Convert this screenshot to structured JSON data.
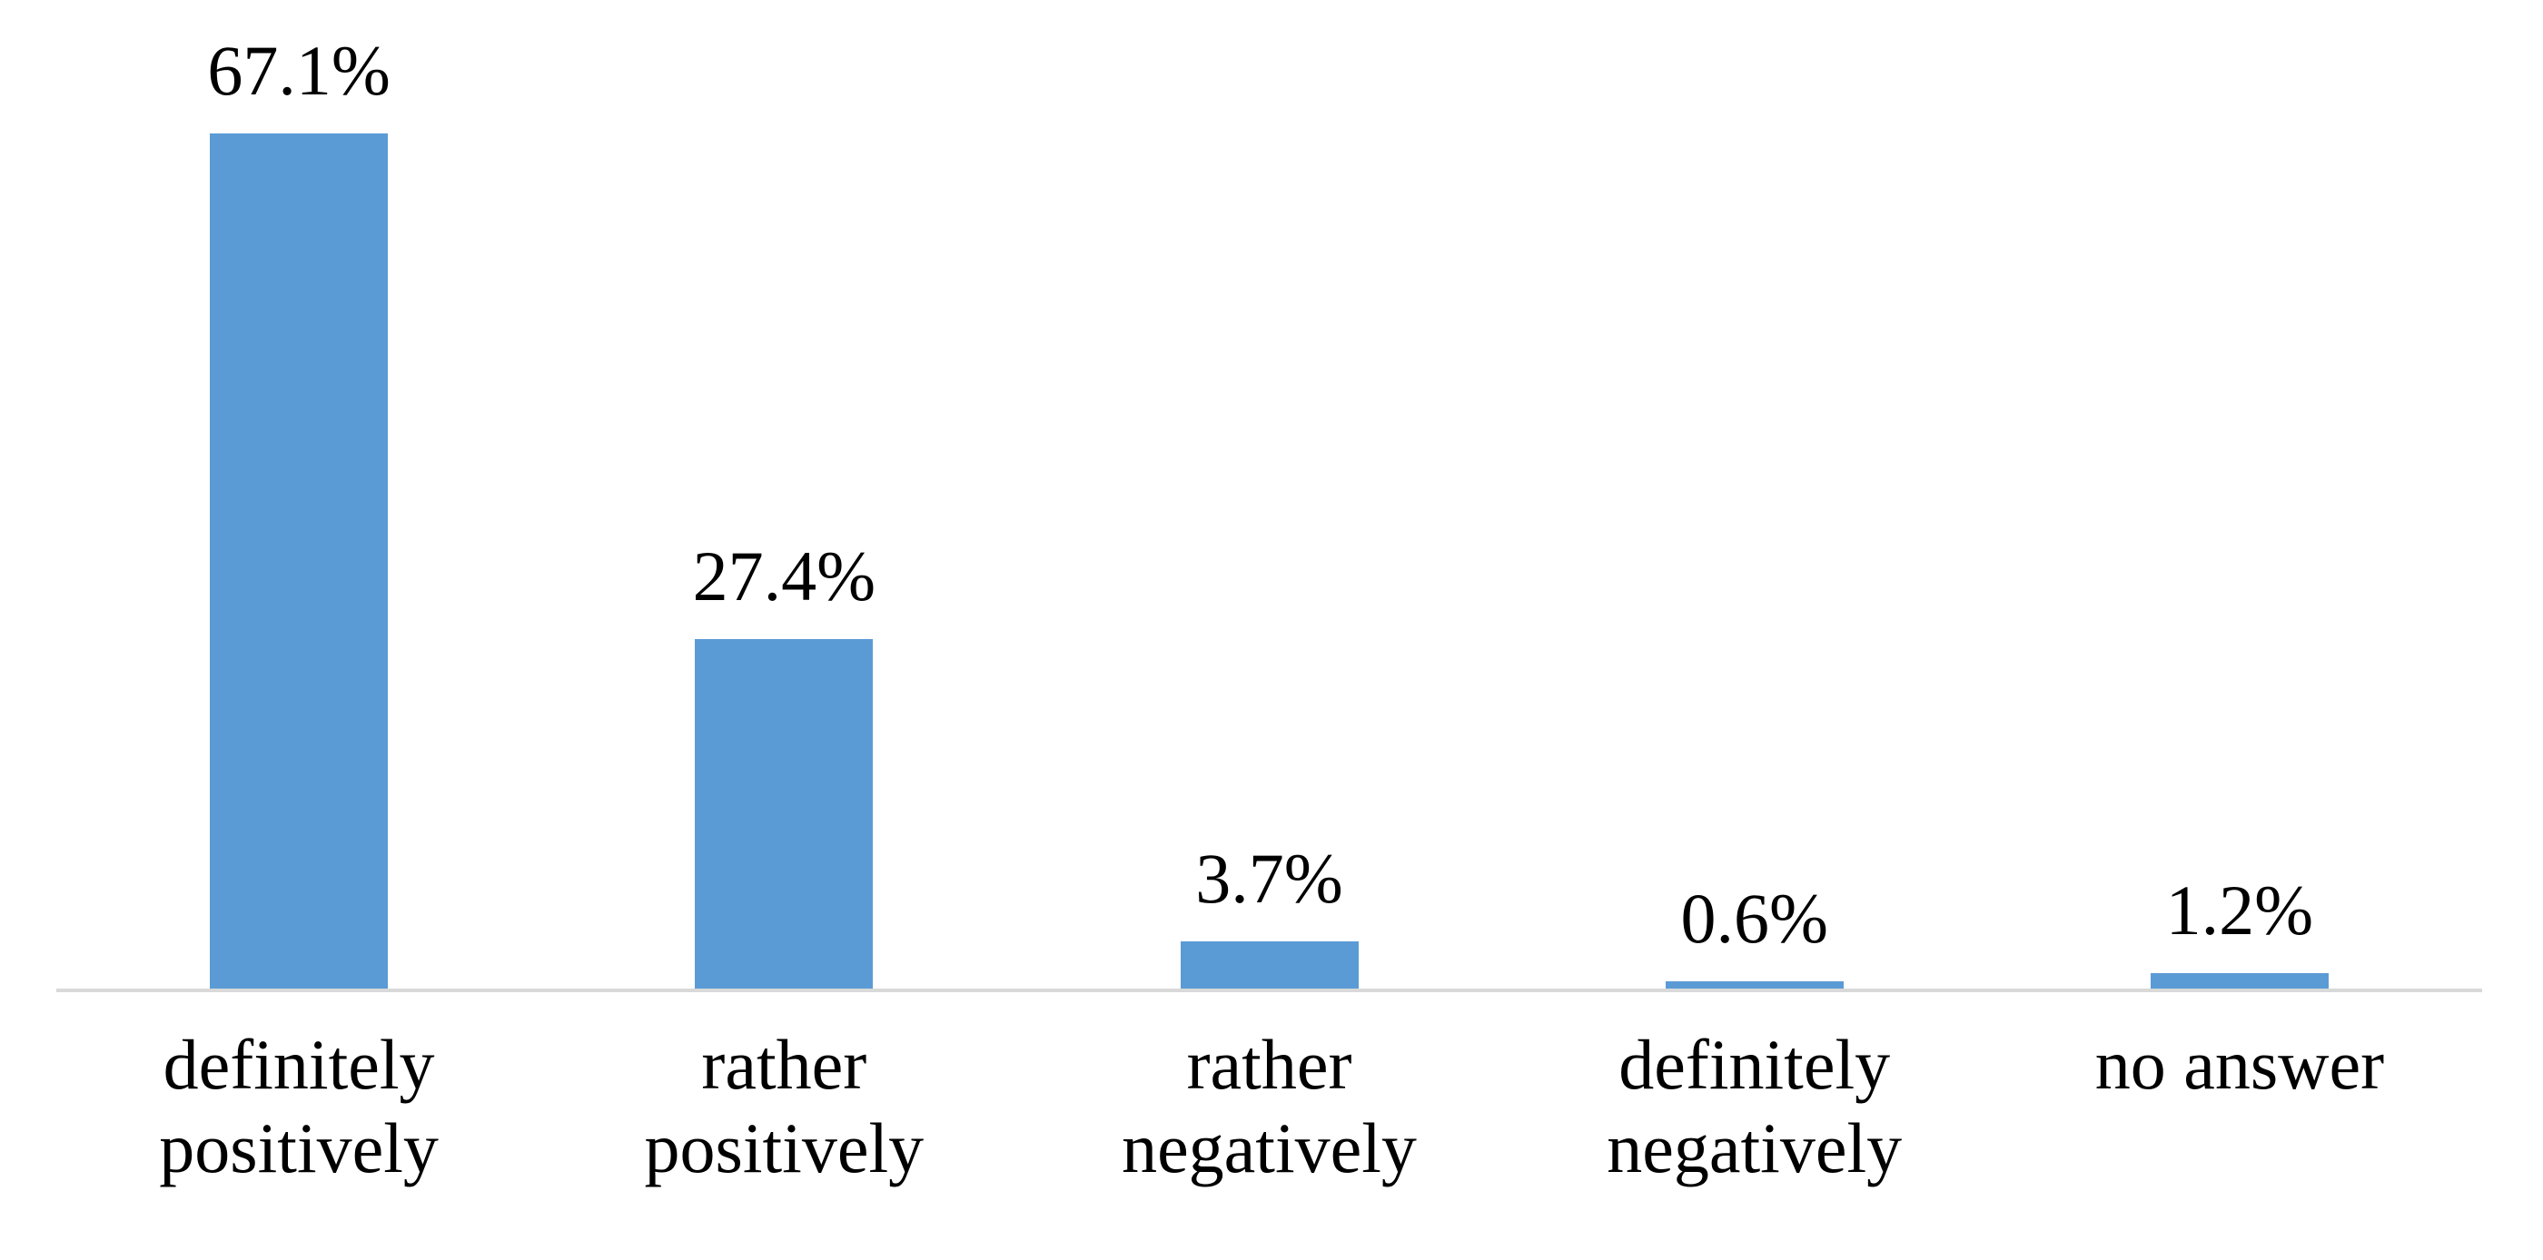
{
  "chart_data": {
    "type": "bar",
    "categories": [
      "definitely positively",
      "rather positively",
      "rather negatively",
      "definitely negatively",
      "no answer"
    ],
    "values": [
      67.1,
      27.4,
      3.7,
      0.6,
      1.2
    ],
    "value_labels": [
      "67.1%",
      "27.4%",
      "3.7%",
      "0.6%",
      "1.2%"
    ],
    "title": "",
    "xlabel": "",
    "ylabel": "",
    "ylim": [
      0,
      70
    ],
    "grid": false,
    "legend": false,
    "colors": {
      "bar_fill": "#5b9bd5",
      "axis_line": "#d9d9d9",
      "label_text": "#000000",
      "background": "#ffffff"
    }
  }
}
